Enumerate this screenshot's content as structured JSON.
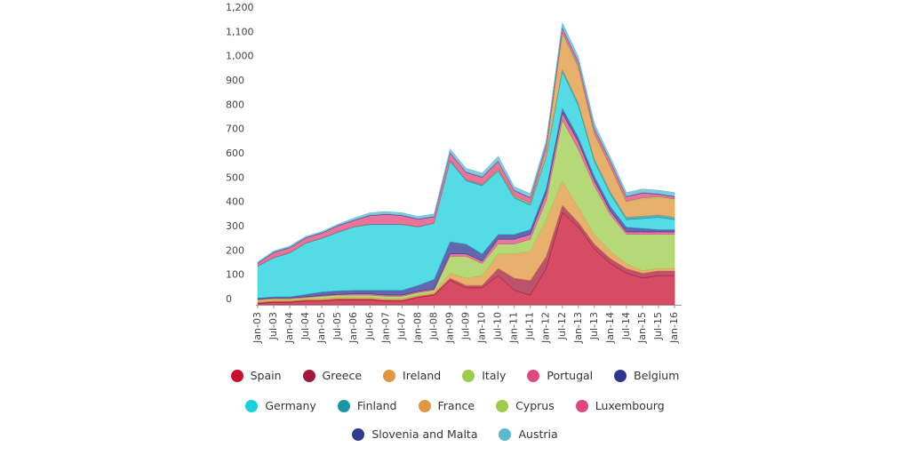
{
  "chart_data": {
    "type": "stacked-area",
    "x": [
      "Jan-03",
      "Jul-03",
      "Jan-04",
      "Jul-04",
      "Jan-05",
      "Jul-05",
      "Jan-06",
      "Jul-06",
      "Jan-07",
      "Jul-07",
      "Jan-08",
      "Jul-08",
      "Jan-09",
      "Jul-09",
      "Jan-10",
      "Jul-10",
      "Jan-11",
      "Jul-11",
      "Jan-12",
      "Jul-12",
      "Jan-13",
      "Jul-13",
      "Jan-14",
      "Jul-14",
      "Jan-15",
      "Jul-15",
      "Jan-16"
    ],
    "ylim": [
      0,
      1200
    ],
    "yticks": [
      0,
      100,
      200,
      300,
      400,
      500,
      600,
      700,
      800,
      900,
      {
        "value": 1000,
        "label": "1,000"
      },
      {
        "value": 1100,
        "label": "1,100"
      },
      {
        "value": 1200,
        "label": "1,200"
      }
    ],
    "series": [
      {
        "name": "Spain",
        "color": "#c8102e",
        "values": [
          5,
          10,
          10,
          15,
          15,
          20,
          20,
          20,
          15,
          15,
          30,
          40,
          100,
          70,
          70,
          120,
          60,
          40,
          150,
          380,
          320,
          230,
          170,
          130,
          110,
          120,
          120
        ]
      },
      {
        "name": "Greece",
        "color": "#a3193b",
        "values": [
          5,
          5,
          5,
          5,
          5,
          5,
          5,
          5,
          5,
          5,
          5,
          5,
          10,
          10,
          10,
          30,
          50,
          60,
          50,
          30,
          20,
          20,
          20,
          20,
          20,
          20,
          20
        ]
      },
      {
        "name": "Ireland",
        "color": "#e0963c",
        "values": [
          5,
          5,
          5,
          5,
          5,
          5,
          5,
          5,
          5,
          5,
          5,
          5,
          20,
          30,
          40,
          60,
          100,
          120,
          150,
          100,
          60,
          40,
          30,
          20,
          10,
          10,
          10
        ]
      },
      {
        "name": "Italy",
        "color": "#9ccc4a",
        "values": [
          5,
          5,
          5,
          5,
          10,
          10,
          10,
          10,
          10,
          10,
          10,
          10,
          70,
          90,
          50,
          40,
          40,
          50,
          80,
          250,
          240,
          200,
          150,
          120,
          150,
          140,
          140
        ]
      },
      {
        "name": "Portugal",
        "color": "#de4a7d",
        "values": [
          3,
          3,
          3,
          3,
          3,
          3,
          5,
          5,
          5,
          5,
          5,
          5,
          10,
          10,
          10,
          20,
          20,
          20,
          30,
          30,
          30,
          20,
          15,
          10,
          10,
          10,
          10
        ]
      },
      {
        "name": "Belgium",
        "color": "#2e3592",
        "values": [
          5,
          5,
          5,
          10,
          15,
          15,
          15,
          15,
          20,
          20,
          25,
          40,
          50,
          40,
          30,
          20,
          20,
          20,
          20,
          20,
          20,
          20,
          20,
          20,
          15,
          10,
          10
        ]
      },
      {
        "name": "Germany",
        "color": "#1ccfdc",
        "values": [
          130,
          160,
          180,
          210,
          220,
          240,
          260,
          270,
          270,
          270,
          240,
          230,
          330,
          260,
          280,
          260,
          150,
          100,
          130,
          150,
          130,
          60,
          50,
          30,
          40,
          50,
          40
        ]
      },
      {
        "name": "Finland",
        "color": "#1a97a5",
        "values": [
          2,
          2,
          2,
          2,
          2,
          2,
          2,
          2,
          2,
          2,
          2,
          2,
          5,
          5,
          5,
          5,
          5,
          5,
          5,
          10,
          10,
          10,
          10,
          10,
          10,
          10,
          10
        ]
      },
      {
        "name": "France",
        "color": "#e0963c",
        "values": [
          0,
          0,
          0,
          0,
          0,
          0,
          0,
          0,
          0,
          0,
          0,
          0,
          0,
          0,
          0,
          5,
          5,
          5,
          20,
          140,
          140,
          100,
          100,
          60,
          70,
          70,
          70
        ]
      },
      {
        "name": "Cyprus",
        "color": "#9ccc4a",
        "values": [
          0,
          0,
          0,
          0,
          0,
          0,
          0,
          0,
          0,
          0,
          0,
          0,
          0,
          0,
          0,
          0,
          0,
          0,
          5,
          10,
          10,
          5,
          5,
          5,
          5,
          5,
          5
        ]
      },
      {
        "name": "Luxembourg",
        "color": "#e0457b",
        "values": [
          10,
          20,
          20,
          20,
          20,
          25,
          25,
          35,
          40,
          35,
          30,
          25,
          30,
          30,
          30,
          30,
          20,
          20,
          20,
          20,
          20,
          20,
          20,
          20,
          20,
          10,
          10
        ]
      },
      {
        "name": "Slovenia and Malta",
        "color": "#303a8f",
        "values": [
          2,
          2,
          2,
          2,
          2,
          2,
          2,
          2,
          2,
          2,
          2,
          2,
          2,
          2,
          2,
          2,
          2,
          2,
          2,
          2,
          2,
          2,
          2,
          2,
          2,
          2,
          2
        ]
      },
      {
        "name": "Austria",
        "color": "#5bb8d1",
        "values": [
          5,
          5,
          5,
          5,
          5,
          5,
          8,
          10,
          10,
          10,
          10,
          10,
          15,
          15,
          15,
          20,
          15,
          15,
          15,
          20,
          20,
          20,
          15,
          15,
          15,
          15,
          15
        ]
      }
    ]
  }
}
